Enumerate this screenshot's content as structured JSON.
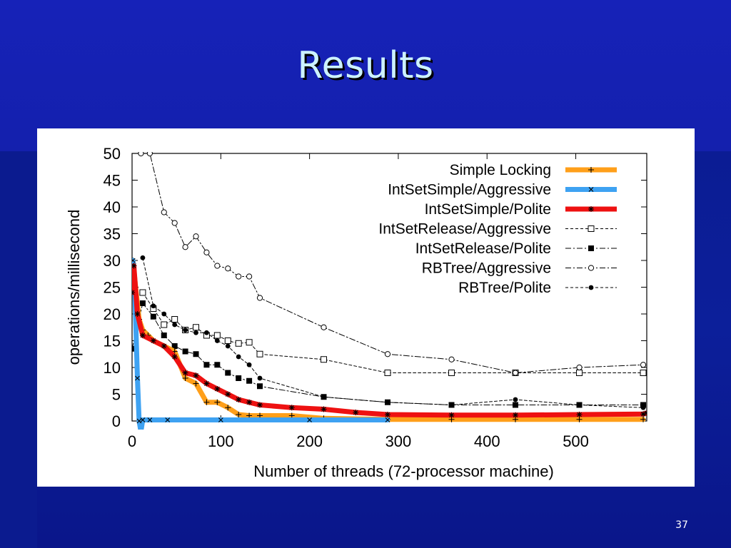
{
  "slide": {
    "title": "Results",
    "number": "37"
  },
  "colors": {
    "title_text": "#ccf2ff",
    "background": "#0b1a8c",
    "panel": "#ffffff"
  },
  "chart_data": {
    "type": "line",
    "xlabel": "Number of threads (72-processor machine)",
    "ylabel": "operations/millisecond",
    "xlim": [
      0,
      580
    ],
    "ylim": [
      0,
      50
    ],
    "xticks": [
      0,
      100,
      200,
      300,
      400,
      500
    ],
    "yticks": [
      0,
      5,
      10,
      15,
      20,
      25,
      30,
      35,
      40,
      45,
      50
    ],
    "grid": false,
    "legend_position": "top-right",
    "series": [
      {
        "name": "Simple Locking",
        "color": "#ff9f1a",
        "style": "thick",
        "marker": "plus",
        "x": [
          1,
          4,
          8,
          12,
          18,
          24,
          36,
          48,
          60,
          72,
          84,
          96,
          108,
          120,
          132,
          144,
          180,
          216,
          288,
          360,
          432,
          504,
          576
        ],
        "y": [
          30,
          25,
          19,
          17,
          16,
          15,
          14,
          13,
          8,
          7,
          3.5,
          3.5,
          2.5,
          1.2,
          1,
          1,
          1,
          0.5,
          0.3,
          0.3,
          0.3,
          0.3,
          0.3
        ]
      },
      {
        "name": "IntSetSimple/Aggressive",
        "color": "#3ea2f2",
        "style": "thick",
        "marker": "x",
        "x": [
          1,
          3,
          6,
          8,
          10,
          12,
          20,
          40,
          100,
          200,
          288
        ],
        "y": [
          30,
          25,
          8,
          0,
          -2,
          0.2,
          0.2,
          0.2,
          0.2,
          0.2,
          0.2
        ]
      },
      {
        "name": "IntSetSimple/Polite",
        "color": "#ee1111",
        "style": "thick",
        "marker": "star",
        "x": [
          0,
          2,
          6,
          12,
          24,
          36,
          48,
          60,
          72,
          84,
          96,
          108,
          120,
          132,
          144,
          180,
          216,
          252,
          288,
          360,
          432,
          504,
          576,
          580
        ],
        "y": [
          24,
          29,
          20,
          16,
          15,
          14,
          12,
          9,
          8.5,
          7,
          6,
          5,
          4,
          3.5,
          3,
          2.5,
          2.2,
          1.6,
          1.2,
          1.1,
          1.1,
          1.2,
          1.3,
          1.5
        ]
      },
      {
        "name": "IntSetRelease/Aggressive",
        "color": "#000000",
        "style": "dashed",
        "marker": "open-square",
        "x": [
          12,
          24,
          36,
          48,
          60,
          72,
          84,
          96,
          108,
          120,
          132,
          144,
          216,
          288,
          360,
          432,
          504,
          576
        ],
        "y": [
          24,
          21,
          18,
          19,
          17,
          17.5,
          16,
          16,
          15,
          14.5,
          14.7,
          12.5,
          11.5,
          9,
          9,
          9,
          9,
          9
        ]
      },
      {
        "name": "IntSetRelease/Polite",
        "color": "#000000",
        "style": "dashdot",
        "marker": "filled-square",
        "x": [
          0,
          12,
          24,
          36,
          48,
          60,
          72,
          84,
          96,
          108,
          120,
          132,
          144,
          216,
          288,
          360,
          432,
          504,
          576
        ],
        "y": [
          13.5,
          22,
          19.5,
          16,
          14,
          13,
          12.5,
          10.5,
          10.5,
          9,
          8,
          7.5,
          6.5,
          4.5,
          3.5,
          3,
          3,
          3,
          3
        ]
      },
      {
        "name": "RBTree/Aggressive",
        "color": "#000000",
        "style": "dashdot",
        "marker": "open-circle",
        "x": [
          10,
          20,
          36,
          48,
          60,
          72,
          84,
          96,
          108,
          120,
          132,
          144,
          216,
          288,
          360,
          432,
          504,
          576
        ],
        "y": [
          50,
          50,
          39,
          37,
          32.5,
          34.5,
          31.5,
          29,
          28.5,
          27,
          27,
          23,
          17.5,
          12.5,
          11.5,
          9,
          10,
          10.5
        ]
      },
      {
        "name": "RBTree/Polite",
        "color": "#000000",
        "style": "dashed",
        "marker": "filled-circle",
        "x": [
          12,
          24,
          36,
          48,
          60,
          72,
          84,
          96,
          108,
          120,
          132,
          144,
          216,
          288,
          360,
          432,
          504,
          576
        ],
        "y": [
          30.5,
          21.5,
          20,
          18,
          17,
          16.5,
          16.5,
          15,
          14,
          12,
          10.5,
          8,
          4.5,
          3.5,
          3,
          4,
          3,
          2.5
        ]
      }
    ]
  }
}
